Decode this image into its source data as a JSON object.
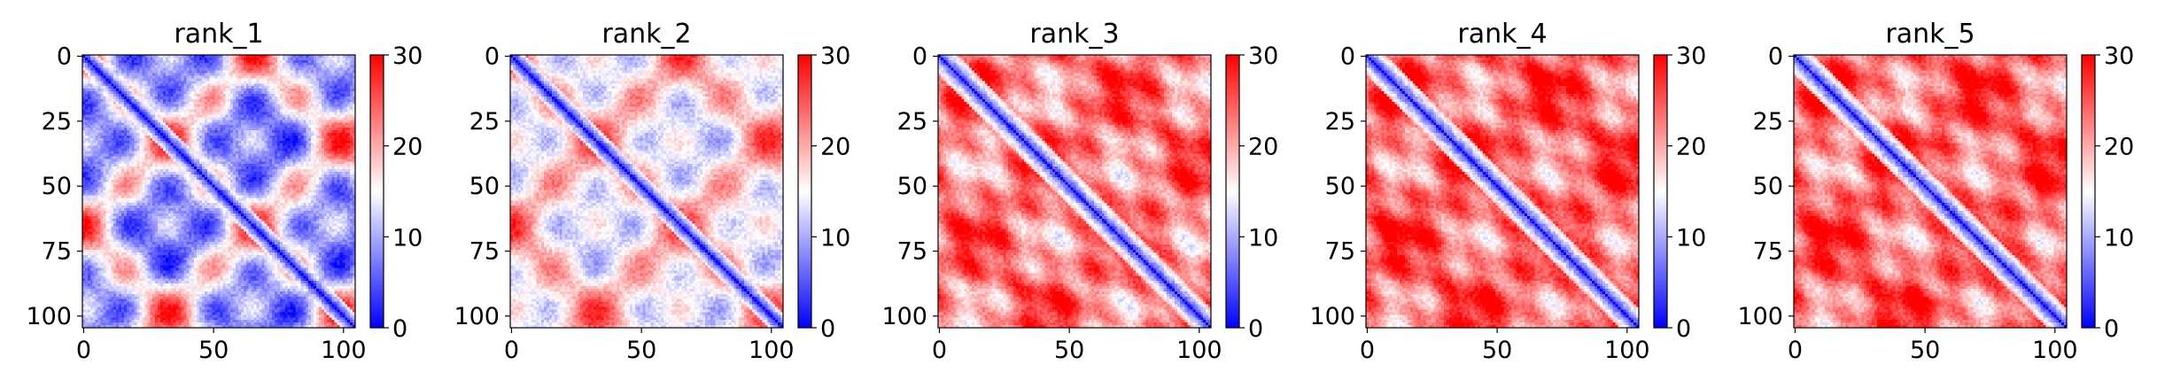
{
  "chart_data": {
    "type": "heatmap",
    "matrix_size": 105,
    "colormap": {
      "name": "bwr",
      "low": "#0000ff",
      "mid": "#ffffff",
      "high": "#ff0000",
      "vmin": 0,
      "vmax": 30,
      "ticks": [
        "0",
        "10",
        "20",
        "30"
      ]
    },
    "x_ticks": [
      "0",
      "50",
      "100"
    ],
    "y_ticks": [
      "0",
      "25",
      "50",
      "75",
      "100"
    ],
    "axis_range": [
      0,
      105
    ],
    "panels": [
      {
        "title": "rank_1",
        "pattern": "blocky_low",
        "distance_mean": 13,
        "contrast": 0.9,
        "diagonal": "sharp"
      },
      {
        "title": "rank_2",
        "pattern": "blocky_mid",
        "distance_mean": 17,
        "contrast": 0.6,
        "diagonal": "sharp"
      },
      {
        "title": "rank_3",
        "pattern": "helix_high",
        "distance_mean": 23,
        "contrast": 0.35,
        "diagonal": "wide"
      },
      {
        "title": "rank_4",
        "pattern": "helix_high",
        "distance_mean": 24,
        "contrast": 0.35,
        "diagonal": "wide"
      },
      {
        "title": "rank_5",
        "pattern": "helix_high",
        "distance_mean": 24,
        "contrast": 0.35,
        "diagonal": "wide"
      }
    ]
  }
}
